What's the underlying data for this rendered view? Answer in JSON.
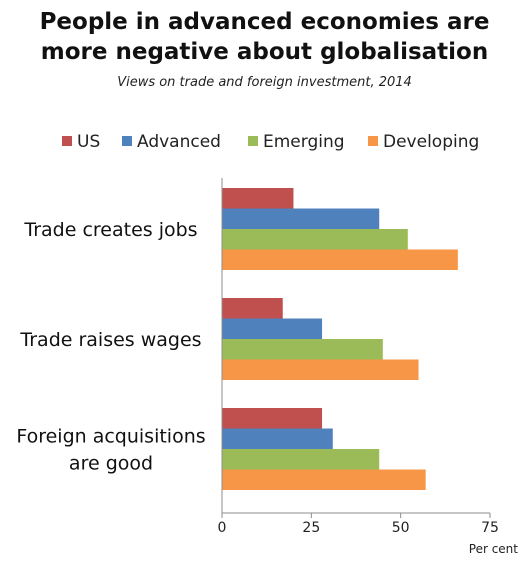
{
  "title_line1": "People in advanced economies are",
  "title_line2": "more negative about globalisation",
  "subtitle": "Views on trade and foreign investment, 2014",
  "chart_data": {
    "type": "bar",
    "orientation": "horizontal",
    "categories": [
      "Trade creates jobs",
      "Trade raises wages",
      "Foreign acquisitions are good"
    ],
    "category_lines": [
      [
        "Trade creates jobs"
      ],
      [
        "Trade raises wages"
      ],
      [
        "Foreign acquisitions",
        "are good"
      ]
    ],
    "series": [
      {
        "name": "US",
        "color": "#c0504d",
        "values": [
          20,
          17,
          28
        ]
      },
      {
        "name": "Advanced",
        "color": "#4f81bd",
        "values": [
          44,
          28,
          31
        ]
      },
      {
        "name": "Emerging",
        "color": "#9bbb59",
        "values": [
          52,
          45,
          44
        ]
      },
      {
        "name": "Developing",
        "color": "#f79646",
        "values": [
          66,
          55,
          57
        ]
      }
    ],
    "xlim": [
      0,
      75
    ],
    "xticks": [
      0,
      25,
      50,
      75
    ],
    "xlabel": "Per cent",
    "legend_position": "top",
    "grid": false
  }
}
